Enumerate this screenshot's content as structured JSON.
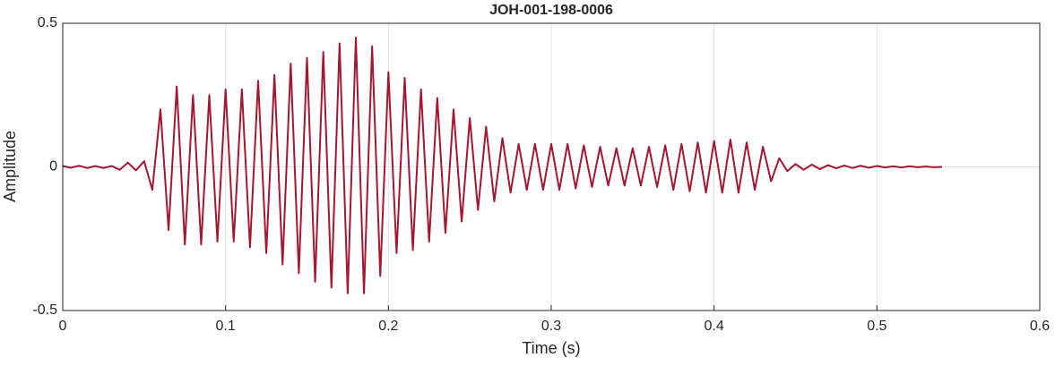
{
  "chart_data": {
    "type": "line",
    "title": "JOH-001-198-0006",
    "xlabel": "Time (s)",
    "ylabel": "Amplitude",
    "x": [
      0,
      0.005,
      0.01,
      0.015,
      0.02,
      0.025,
      0.03,
      0.035,
      0.04,
      0.045,
      0.05,
      0.055,
      0.06,
      0.065,
      0.07,
      0.075,
      0.08,
      0.085,
      0.09,
      0.095,
      0.1,
      0.105,
      0.11,
      0.115,
      0.12,
      0.125,
      0.13,
      0.135,
      0.14,
      0.145,
      0.15,
      0.155,
      0.16,
      0.165,
      0.17,
      0.175,
      0.18,
      0.185,
      0.19,
      0.195,
      0.2,
      0.205,
      0.21,
      0.215,
      0.22,
      0.225,
      0.23,
      0.235,
      0.24,
      0.245,
      0.25,
      0.255,
      0.26,
      0.265,
      0.27,
      0.275,
      0.28,
      0.285,
      0.29,
      0.295,
      0.3,
      0.305,
      0.31,
      0.315,
      0.32,
      0.325,
      0.33,
      0.335,
      0.34,
      0.345,
      0.35,
      0.355,
      0.36,
      0.365,
      0.37,
      0.375,
      0.38,
      0.385,
      0.39,
      0.395,
      0.4,
      0.405,
      0.41,
      0.415,
      0.42,
      0.425,
      0.43,
      0.435,
      0.44,
      0.445,
      0.45,
      0.455,
      0.46,
      0.465,
      0.47,
      0.475,
      0.48,
      0.485,
      0.49,
      0.495,
      0.5,
      0.505,
      0.51,
      0.515,
      0.52,
      0.525,
      0.53,
      0.535,
      0.54
    ],
    "series": [
      {
        "color": "#a51630",
        "values": [
          0.003,
          -0.003,
          0.004,
          -0.004,
          0.003,
          -0.004,
          0.003,
          -0.01,
          0.015,
          -0.012,
          0.02,
          -0.08,
          0.2,
          -0.22,
          0.28,
          -0.27,
          0.25,
          -0.27,
          0.25,
          -0.26,
          0.27,
          -0.26,
          0.27,
          -0.28,
          0.3,
          -0.3,
          0.32,
          -0.34,
          0.36,
          -0.37,
          0.38,
          -0.4,
          0.4,
          -0.42,
          0.43,
          -0.44,
          0.45,
          -0.44,
          0.42,
          -0.38,
          0.33,
          -0.3,
          0.31,
          -0.29,
          0.27,
          -0.26,
          0.24,
          -0.23,
          0.2,
          -0.19,
          0.17,
          -0.15,
          0.14,
          -0.12,
          0.1,
          -0.09,
          0.08,
          -0.08,
          0.08,
          -0.08,
          0.08,
          -0.08,
          0.08,
          -0.075,
          0.075,
          -0.07,
          0.07,
          -0.065,
          0.065,
          -0.065,
          0.065,
          -0.065,
          0.07,
          -0.07,
          0.075,
          -0.08,
          0.08,
          -0.085,
          0.085,
          -0.09,
          0.09,
          -0.09,
          0.095,
          -0.09,
          0.085,
          -0.08,
          0.07,
          -0.05,
          0.03,
          -0.015,
          0.01,
          -0.01,
          0.008,
          -0.008,
          0.006,
          -0.005,
          0.005,
          -0.004,
          0.004,
          -0.003,
          0.003,
          -0.002,
          0.002,
          -0.002,
          0.002,
          -0.001,
          0.001,
          -0.001,
          0
        ]
      }
    ],
    "xlim": [
      0,
      0.6
    ],
    "xticks": [
      0,
      0.1,
      0.2,
      0.3,
      0.4,
      0.5,
      0.6
    ],
    "ylim": [
      -0.5,
      0.5
    ],
    "yticks": [
      -0.5,
      0,
      0.5
    ],
    "grid": true
  }
}
